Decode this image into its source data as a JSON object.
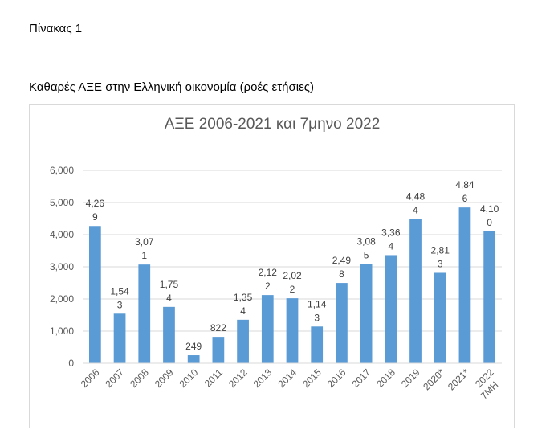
{
  "document": {
    "table_label": "Πίνακας 1",
    "caption": "Καθαρές ΑΞΕ στην Ελληνική οικονομία (ροές ετήσιες)"
  },
  "chart_data": {
    "type": "bar",
    "title": "ΑΞΕ 2006-2021 και 7μηνο 2022",
    "xlabel": "",
    "ylabel": "",
    "ylim": [
      0,
      6000
    ],
    "yticks": [
      "0",
      "1,000",
      "2,000",
      "3,000",
      "4,000",
      "5,000",
      "6,000"
    ],
    "grid": true,
    "legend": "none",
    "bar_color": "#5b9bd5",
    "categories": [
      "2006",
      "2007",
      "2008",
      "2009",
      "2010",
      "2011",
      "2012",
      "2013",
      "2014",
      "2015",
      "2016",
      "2017",
      "2018",
      "2019",
      "2020*",
      "2021*",
      "7MH 2022"
    ],
    "values": [
      4269,
      1543,
      3071,
      1754,
      249,
      822,
      1354,
      2122,
      2022,
      1143,
      2498,
      3085,
      3364,
      4484,
      2813,
      4846,
      4100
    ],
    "data_labels": [
      [
        "4,26",
        "9"
      ],
      [
        "1,54",
        "3"
      ],
      [
        "3,07",
        "1"
      ],
      [
        "1,75",
        "4"
      ],
      [
        "249"
      ],
      [
        "822"
      ],
      [
        "1,35",
        "4"
      ],
      [
        "2,12",
        "2"
      ],
      [
        "2,02",
        "2"
      ],
      [
        "1,14",
        "3"
      ],
      [
        "2,49",
        "8"
      ],
      [
        "3,08",
        "5"
      ],
      [
        "3,36",
        "4"
      ],
      [
        "4,48",
        "4"
      ],
      [
        "2,81",
        "3"
      ],
      [
        "4,84",
        "6"
      ],
      [
        "4,10",
        "0"
      ]
    ]
  }
}
